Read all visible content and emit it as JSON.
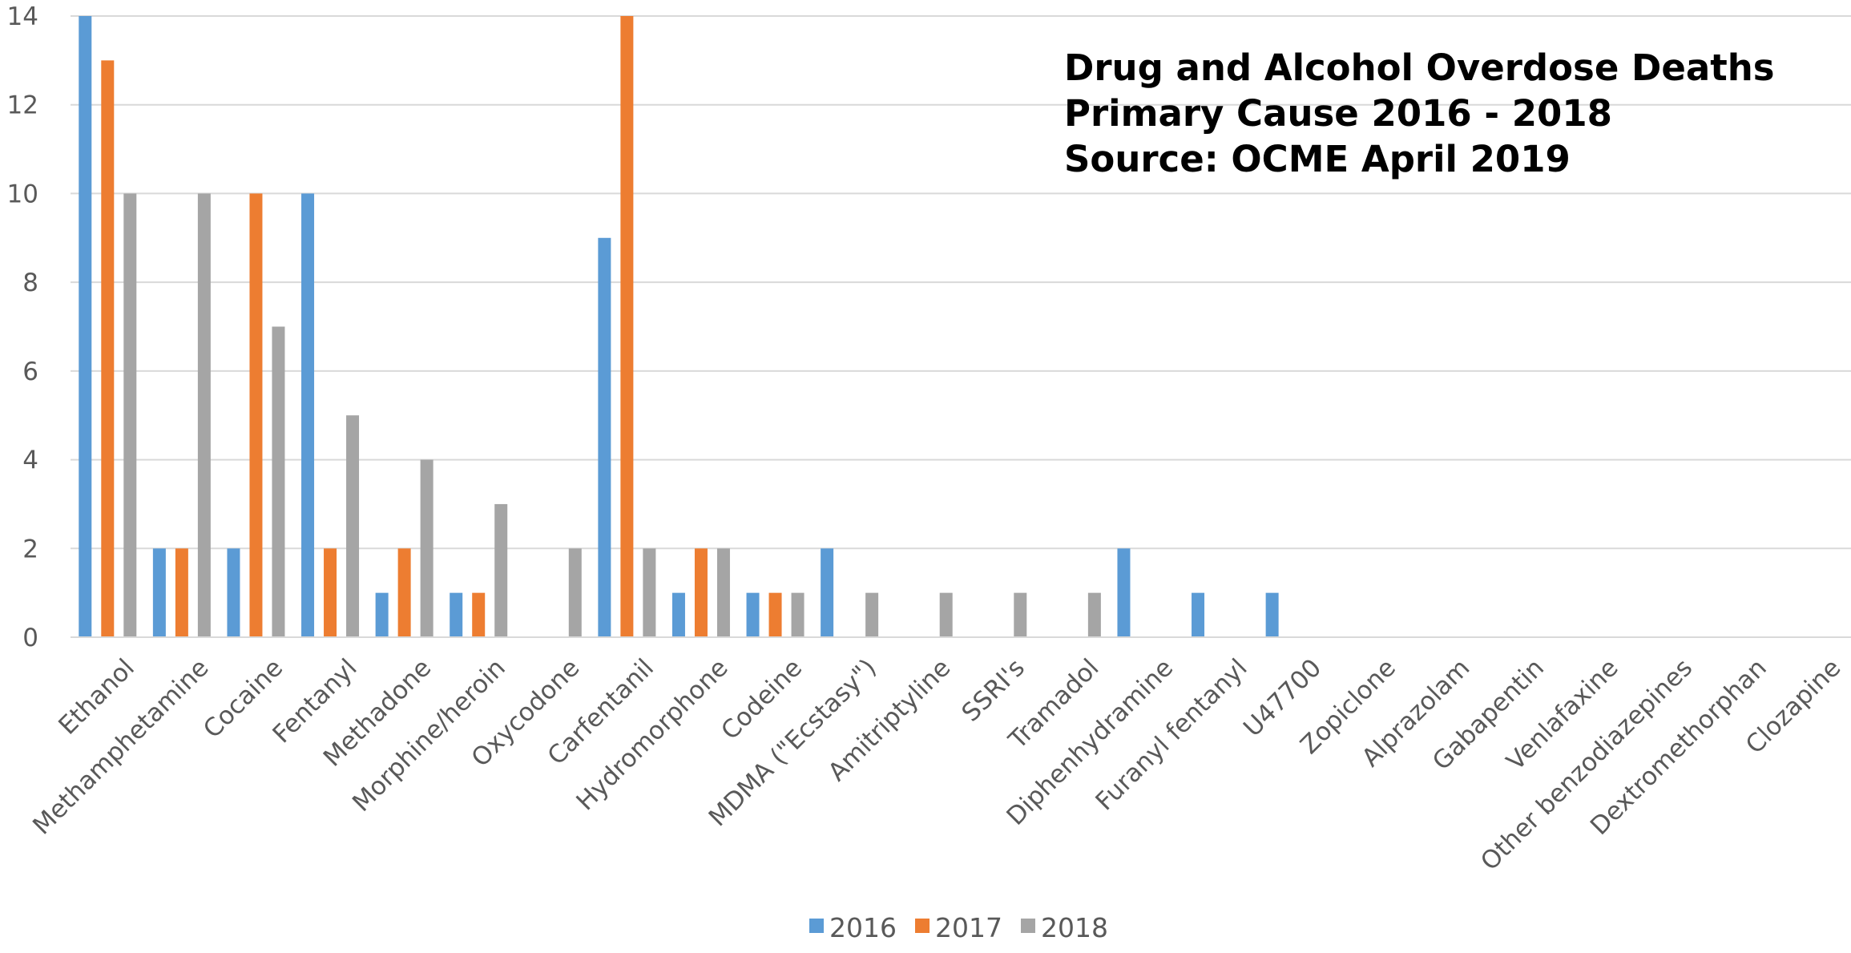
{
  "chart_data": {
    "type": "bar",
    "title_lines": [
      "Drug and Alcohol Overdose Deaths",
      "Primary Cause 2016 -  2018",
      "Source: OCME April 2019"
    ],
    "xlabel": "",
    "ylabel": "",
    "ylim": [
      0,
      14
    ],
    "yticks": [
      0,
      2,
      4,
      6,
      8,
      10,
      12,
      14
    ],
    "grid": true,
    "legend_position": "bottom",
    "categories": [
      "Ethanol",
      "Methamphetamine",
      "Cocaine",
      "Fentanyl",
      "Methadone",
      "Morphine/heroin",
      "Oxycodone",
      "Carfentanil",
      "Hydromorphone",
      "Codeine",
      "MDMA (\"Ecstasy\")",
      "Amitriptyline",
      "SSRI's",
      "Tramadol",
      "Diphenhydramine",
      "Furanyl fentanyl",
      "U47700",
      "Zopiclone",
      "Alprazolam",
      "Gabapentin",
      "Venlafaxine",
      "Other benzodiazepines",
      "Dextromethorphan",
      "Clozapine"
    ],
    "series": [
      {
        "name": "2016",
        "color": "#5B9BD5",
        "values": [
          14,
          2,
          2,
          10,
          1,
          1,
          0,
          9,
          1,
          1,
          2,
          0,
          0,
          0,
          2,
          1,
          1,
          0,
          0,
          0,
          0,
          0,
          0,
          0
        ]
      },
      {
        "name": "2017",
        "color": "#ED7D31",
        "values": [
          13,
          2,
          10,
          2,
          2,
          1,
          0,
          14,
          2,
          1,
          0,
          0,
          0,
          0,
          0,
          0,
          0,
          0,
          0,
          0,
          0,
          0,
          0,
          0
        ]
      },
      {
        "name": "2018",
        "color": "#A5A5A5",
        "values": [
          10,
          10,
          7,
          5,
          4,
          3,
          2,
          2,
          2,
          1,
          1,
          1,
          1,
          1,
          0,
          0,
          0,
          0,
          0,
          0,
          0,
          0,
          0,
          0
        ]
      }
    ]
  }
}
